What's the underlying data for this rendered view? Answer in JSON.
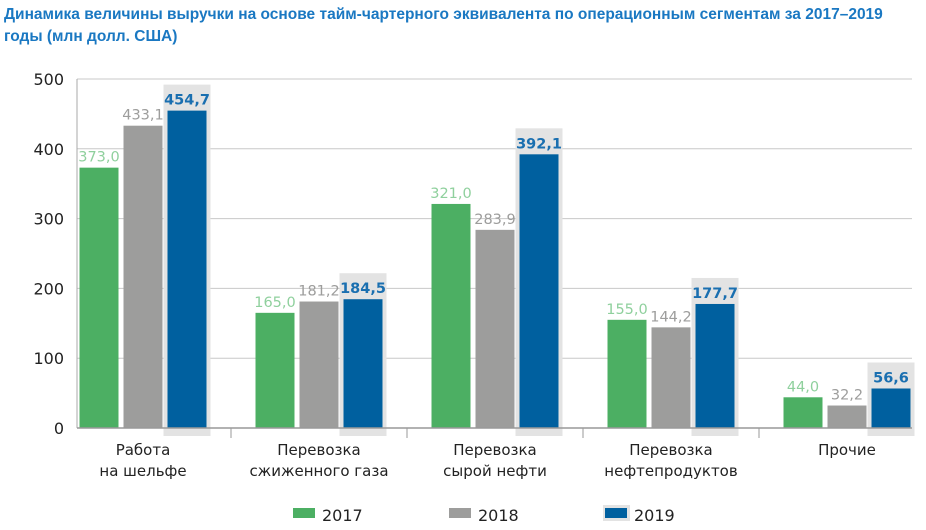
{
  "chart_data": {
    "type": "bar",
    "title": "Динамика величины выручки на основе тайм-чартерного эквивалента по операционным сегментам за 2017–2019 годы (млн долл. США)",
    "categories": [
      [
        "Работа",
        "на шельфе"
      ],
      [
        "Перевозка",
        "сжиженного газа"
      ],
      [
        "Перевозка",
        "сырой нефти"
      ],
      [
        "Перевозка",
        "нефтепродуктов"
      ],
      [
        "Прочие"
      ]
    ],
    "series": [
      {
        "name": "2017",
        "color": "#4caf63",
        "label_color": "#8fd09d",
        "values": [
          373.0,
          165.0,
          321.0,
          155.0,
          44.0
        ]
      },
      {
        "name": "2018",
        "color": "#9d9d9c",
        "label_color": "#9d9d9c",
        "values": [
          433.1,
          181.2,
          283.9,
          144.2,
          32.2
        ]
      },
      {
        "name": "2019",
        "color": "#00609f",
        "label_color": "#1a6fb0",
        "values": [
          454.7,
          184.5,
          392.1,
          177.7,
          56.6
        ]
      }
    ],
    "highlight_series": "2019",
    "highlight_color": "#e3e3e3",
    "ylim": [
      0,
      500
    ],
    "yticks": [
      0,
      100,
      200,
      300,
      400,
      500
    ],
    "grid": true,
    "legend": "bottom"
  }
}
